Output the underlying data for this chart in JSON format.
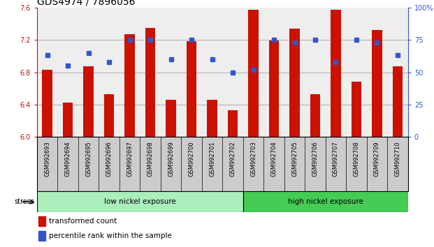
{
  "title": "GDS4974 / 7896056",
  "categories": [
    "GSM992693",
    "GSM992694",
    "GSM992695",
    "GSM992696",
    "GSM992697",
    "GSM992698",
    "GSM992699",
    "GSM992700",
    "GSM992701",
    "GSM992702",
    "GSM992703",
    "GSM992704",
    "GSM992705",
    "GSM992706",
    "GSM992707",
    "GSM992708",
    "GSM992709",
    "GSM992710"
  ],
  "red_values": [
    6.83,
    6.43,
    6.87,
    6.53,
    7.27,
    7.35,
    6.46,
    7.18,
    6.46,
    6.33,
    7.57,
    7.19,
    7.34,
    6.53,
    7.57,
    6.68,
    7.32,
    6.87
  ],
  "blue_values_pct": [
    63,
    55,
    65,
    58,
    75,
    75,
    60,
    75,
    60,
    50,
    52,
    75,
    73,
    75,
    58,
    75,
    73,
    63
  ],
  "ymin": 6.0,
  "ymax": 7.6,
  "yticks": [
    6.0,
    6.4,
    6.8,
    7.2,
    7.6
  ],
  "right_yticks": [
    0,
    25,
    50,
    75,
    100
  ],
  "bar_color": "#cc1100",
  "blue_color": "#3355cc",
  "background_plot": "#eeeeee",
  "group1_label": "low nickel exposure",
  "group2_label": "high nickel exposure",
  "group1_color": "#aaeebb",
  "group2_color": "#44cc55",
  "group1_count": 10,
  "group2_count": 8,
  "stress_label": "stress",
  "legend_red": "transformed count",
  "legend_blue": "percentile rank within the sample",
  "title_fontsize": 10,
  "tick_fontsize": 7,
  "bar_width": 0.5,
  "label_fontsize": 6
}
